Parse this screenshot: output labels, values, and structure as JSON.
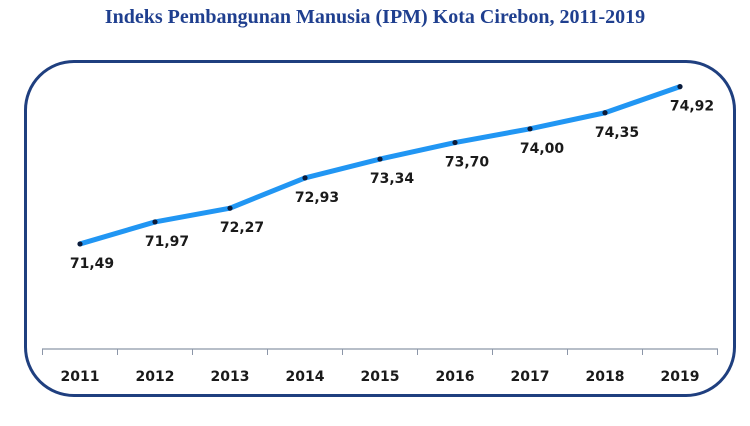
{
  "title": "Indeks Pembangunan Manusia (IPM) Kota Cirebon, 2011-2019",
  "colors": {
    "title": "#1f3f8f",
    "frame_border": "#1f3f7f",
    "line": "#2196f3",
    "marker": "#0b1b3a",
    "axis": "#8c96a8"
  },
  "chart_data": {
    "type": "line",
    "title": "Indeks Pembangunan Manusia (IPM) Kota Cirebon, 2011-2019",
    "categories": [
      "2011",
      "2012",
      "2013",
      "2014",
      "2015",
      "2016",
      "2017",
      "2018",
      "2019"
    ],
    "series": [
      {
        "values": [
          71.49,
          71.97,
          72.27,
          72.93,
          73.34,
          73.7,
          74.0,
          74.35,
          74.92
        ],
        "labels": [
          "71,49",
          "71,97",
          "72,27",
          "72,93",
          "73,34",
          "73,70",
          "74,00",
          "74,35",
          "74,92"
        ]
      }
    ],
    "ylim": [
      69.2,
      75.5
    ],
    "grid": false,
    "legend": "none"
  }
}
